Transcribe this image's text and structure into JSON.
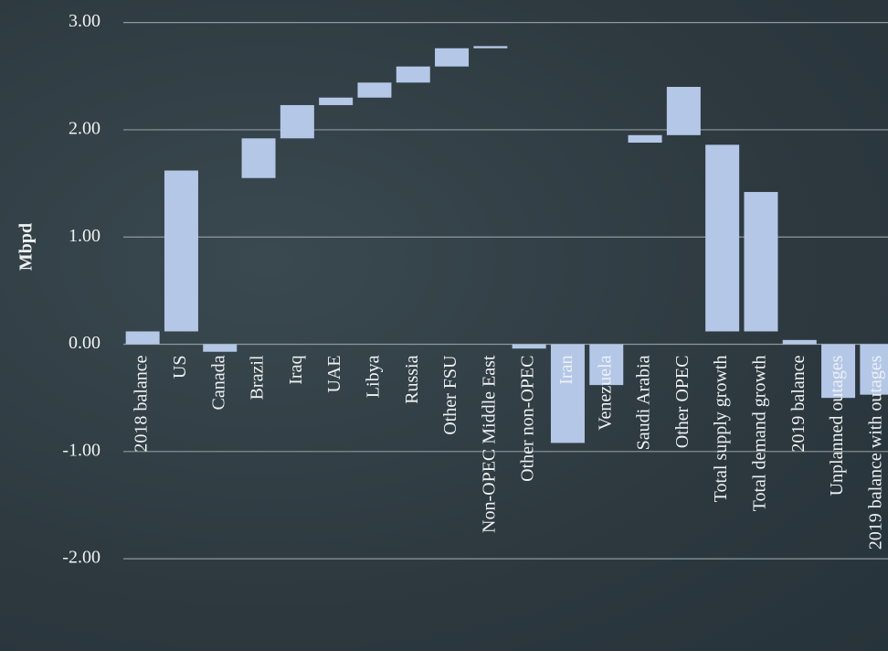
{
  "chart_data": {
    "type": "floating-bar",
    "y_axis_label": "Mbpd",
    "categories": [
      "2018 balance",
      "US",
      "Canada",
      "Brazil",
      "Iraq",
      "UAE",
      "Libya",
      "Russia",
      "Other FSU",
      "Non-OPEC Middle East",
      "Other non-OPEC",
      "Iran",
      "Venezuela",
      "Saudi Arabia",
      "Other OPEC",
      "Total supply growth",
      "Total demand growth",
      "2019 balance",
      "Unplanned outages",
      "2019 balance with outages"
    ],
    "values": [
      [
        0,
        0.12
      ],
      [
        0.12,
        1.62
      ],
      [
        0,
        -0.07
      ],
      [
        1.55,
        1.92
      ],
      [
        1.92,
        2.23
      ],
      [
        2.23,
        2.3
      ],
      [
        2.3,
        2.44
      ],
      [
        2.44,
        2.59
      ],
      [
        2.59,
        2.76
      ],
      [
        2.76,
        2.78
      ],
      [
        0,
        -0.04
      ],
      [
        0,
        -0.92
      ],
      [
        0,
        -0.38
      ],
      [
        1.88,
        1.95
      ],
      [
        1.95,
        2.4
      ],
      [
        0.12,
        1.86
      ],
      [
        0.12,
        1.42
      ],
      [
        0,
        0.04
      ],
      [
        0,
        -0.5
      ],
      [
        0,
        -0.47
      ]
    ],
    "color": "#b4c7e7",
    "ylim": [
      -2.86,
      3.21
    ],
    "yticks": [
      {
        "value": 3,
        "label": "3.00"
      },
      {
        "value": 2,
        "label": "2.00"
      },
      {
        "value": 1,
        "label": "1.00"
      },
      {
        "value": 0,
        "label": "0.00"
      },
      {
        "value": -1,
        "label": "-1.00"
      },
      {
        "value": -2,
        "label": "-2.00"
      }
    ],
    "grid": true
  }
}
